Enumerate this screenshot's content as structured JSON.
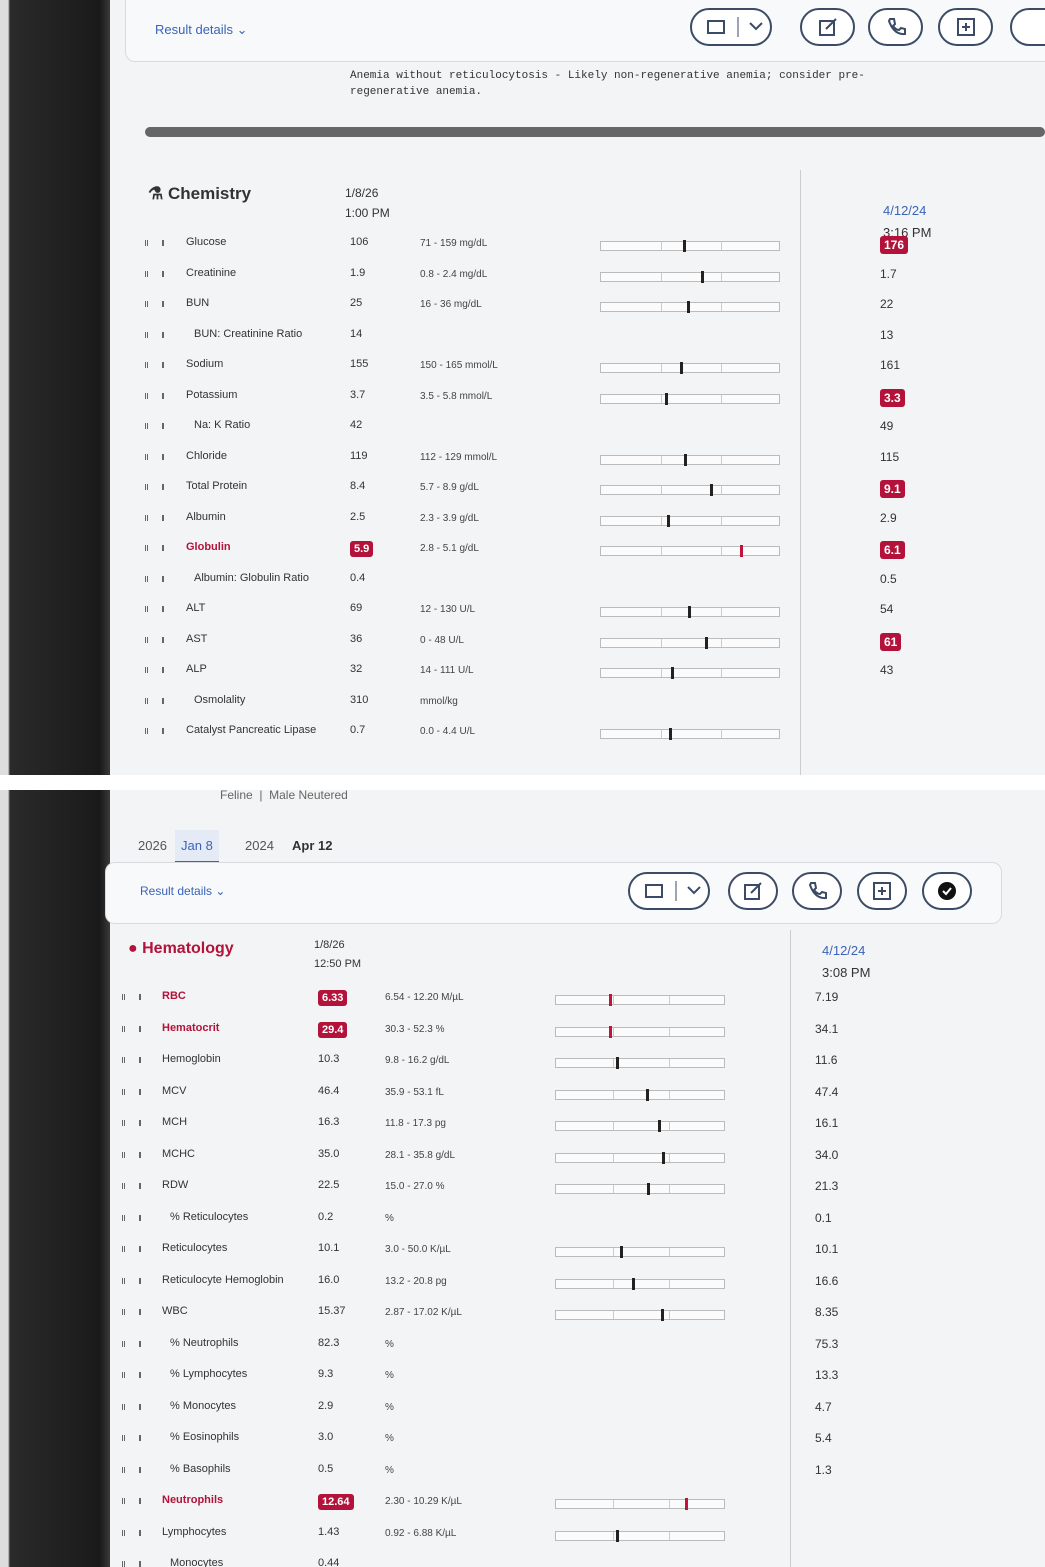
{
  "chemistry_screen": {
    "result_details": "Result details",
    "note": "Anemia without reticulocytosis - Likely non-regenerative anemia; consider pre-regenerative anemia.",
    "section": "Chemistry",
    "current_date": "1/8/26",
    "current_time": "1:00 PM",
    "previous_date": "4/12/24",
    "previous_time": "3:16 PM",
    "rows": [
      {
        "name": "Glucose",
        "value": "106",
        "range": "71 - 159 mg/dL",
        "previous": "176",
        "previous_flagged": true
      },
      {
        "name": "Creatinine",
        "value": "1.9",
        "range": "0.8 - 2.4 mg/dL",
        "previous": "1.7"
      },
      {
        "name": "BUN",
        "value": "25",
        "range": "16 - 36 mg/dL",
        "previous": "22"
      },
      {
        "name": "BUN: Creatinine Ratio",
        "value": "14",
        "previous": "13"
      },
      {
        "name": "Sodium",
        "value": "155",
        "range": "150 - 165 mmol/L",
        "previous": "161"
      },
      {
        "name": "Potassium",
        "value": "3.7",
        "range": "3.5 - 5.8 mmol/L",
        "previous": "3.3",
        "previous_flagged": true
      },
      {
        "name": "Na: K Ratio",
        "value": "42",
        "previous": "49"
      },
      {
        "name": "Chloride",
        "value": "119",
        "range": "112 - 129 mmol/L",
        "previous": "115"
      },
      {
        "name": "Total Protein",
        "value": "8.4",
        "range": "5.7 - 8.9 g/dL",
        "previous": "9.1",
        "previous_flagged": true
      },
      {
        "name": "Albumin",
        "value": "2.5",
        "range": "2.3 - 3.9 g/dL",
        "previous": "2.9"
      },
      {
        "name": "Globulin",
        "value": "5.9",
        "flagged": true,
        "range": "2.8 - 5.1 g/dL",
        "previous": "6.1",
        "previous_flagged": true
      },
      {
        "name": "Albumin: Globulin Ratio",
        "value": "0.4",
        "previous": "0.5"
      },
      {
        "name": "ALT",
        "value": "69",
        "range": "12 - 130 U/L",
        "previous": "54"
      },
      {
        "name": "AST",
        "value": "36",
        "range": "0 - 48 U/L",
        "previous": "61",
        "previous_flagged": true
      },
      {
        "name": "ALP",
        "value": "32",
        "range": "14 - 111 U/L",
        "previous": "43"
      },
      {
        "name": "Osmolality",
        "value": "310",
        "range": "mmol/kg"
      },
      {
        "name": "Catalyst Pancreatic Lipase",
        "value": "0.7",
        "range": "0.0 - 4.4 U/L"
      }
    ]
  },
  "hematology_screen": {
    "species": "Feline",
    "sex": "Male Neutered",
    "year_current": "2026",
    "tab_current": "Jan 8",
    "year_previous": "2024",
    "tab_previous": "Apr 12",
    "result_details": "Result details",
    "section": "Hematology",
    "current_date": "1/8/26",
    "current_time": "12:50 PM",
    "previous_date": "4/12/24",
    "previous_time": "3:08 PM",
    "rows": [
      {
        "name": "RBC",
        "value": "6.33",
        "flagged": true,
        "range": "6.54 - 12.20 M/µL",
        "previous": "7.19"
      },
      {
        "name": "Hematocrit",
        "value": "29.4",
        "flagged": true,
        "range": "30.3 - 52.3 %",
        "previous": "34.1"
      },
      {
        "name": "Hemoglobin",
        "value": "10.3",
        "range": "9.8 - 16.2 g/dL",
        "previous": "11.6"
      },
      {
        "name": "MCV",
        "value": "46.4",
        "range": "35.9 - 53.1 fL",
        "previous": "47.4"
      },
      {
        "name": "MCH",
        "value": "16.3",
        "range": "11.8 - 17.3 pg",
        "previous": "16.1"
      },
      {
        "name": "MCHC",
        "value": "35.0",
        "range": "28.1 - 35.8 g/dL",
        "previous": "34.0"
      },
      {
        "name": "RDW",
        "value": "22.5",
        "range": "15.0 - 27.0 %",
        "previous": "21.3"
      },
      {
        "name": "% Reticulocytes",
        "value": "0.2",
        "range": "%",
        "previous": "0.1"
      },
      {
        "name": "Reticulocytes",
        "value": "10.1",
        "range": "3.0 - 50.0 K/µL",
        "previous": "10.1"
      },
      {
        "name": "Reticulocyte Hemoglobin",
        "value": "16.0",
        "range": "13.2 - 20.8 pg",
        "previous": "16.6"
      },
      {
        "name": "WBC",
        "value": "15.37",
        "range": "2.87 - 17.02 K/µL",
        "previous": "8.35"
      },
      {
        "name": "% Neutrophils",
        "value": "82.3",
        "range": "%",
        "previous": "75.3"
      },
      {
        "name": "% Lymphocytes",
        "value": "9.3",
        "range": "%",
        "previous": "13.3"
      },
      {
        "name": "% Monocytes",
        "value": "2.9",
        "range": "%",
        "previous": "4.7"
      },
      {
        "name": "% Eosinophils",
        "value": "3.0",
        "range": "%",
        "previous": "5.4"
      },
      {
        "name": "% Basophils",
        "value": "0.5",
        "range": "%",
        "previous": "1.3"
      },
      {
        "name": "Neutrophils",
        "value": "12.64",
        "flagged": true,
        "range": "2.30 - 10.29 K/µL"
      },
      {
        "name": "Lymphocytes",
        "value": "1.43",
        "range": "0.92 - 6.88 K/µL"
      },
      {
        "name": "Monocytes",
        "value": "0.44"
      }
    ]
  }
}
